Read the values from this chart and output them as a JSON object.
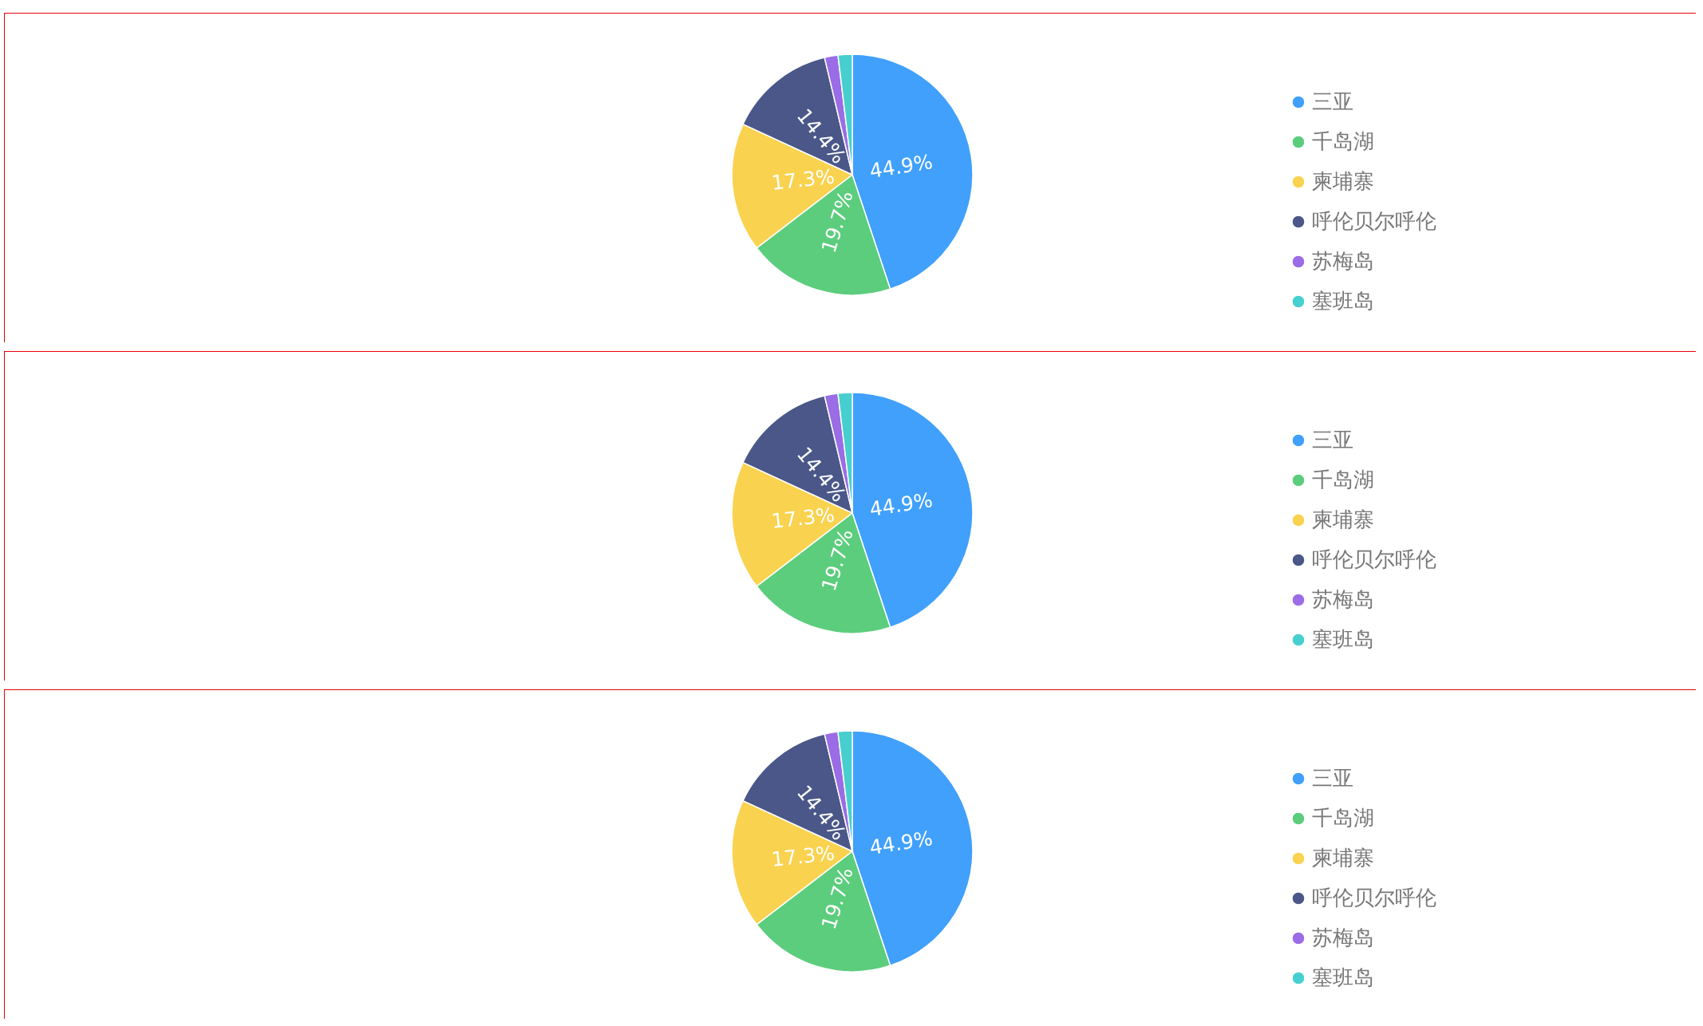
{
  "chart_data": [
    {
      "type": "pie",
      "categories": [
        "三亚",
        "千岛湖",
        "柬埔寨",
        "呼伦贝尔呼伦",
        "苏梅岛",
        "塞班岛"
      ],
      "values": [
        44.9,
        19.7,
        17.3,
        14.4,
        1.8,
        1.9
      ],
      "colors": [
        "#40a0fc",
        "#5ccd7d",
        "#f9d24f",
        "#4a5788",
        "#9a6ce6",
        "#47cfcf"
      ],
      "value_labels": [
        "44.9%",
        "19.7%",
        "17.3%",
        "14.4%",
        null,
        null
      ],
      "legend": "right"
    },
    {
      "type": "pie",
      "categories": [
        "三亚",
        "千岛湖",
        "柬埔寨",
        "呼伦贝尔呼伦",
        "苏梅岛",
        "塞班岛"
      ],
      "values": [
        44.9,
        19.7,
        17.3,
        14.4,
        1.8,
        1.9
      ],
      "colors": [
        "#40a0fc",
        "#5ccd7d",
        "#f9d24f",
        "#4a5788",
        "#9a6ce6",
        "#47cfcf"
      ],
      "value_labels": [
        "44.9%",
        "19.7%",
        "17.3%",
        "14.4%",
        null,
        null
      ],
      "legend": "right"
    },
    {
      "type": "pie",
      "categories": [
        "三亚",
        "千岛湖",
        "柬埔寨",
        "呼伦贝尔呼伦",
        "苏梅岛",
        "塞班岛"
      ],
      "values": [
        44.9,
        19.7,
        17.3,
        14.4,
        1.8,
        1.9
      ],
      "colors": [
        "#40a0fc",
        "#5ccd7d",
        "#f9d24f",
        "#4a5788",
        "#9a6ce6",
        "#47cfcf"
      ],
      "value_labels": [
        "44.9%",
        "19.7%",
        "17.3%",
        "14.4%",
        null,
        null
      ],
      "legend": "right"
    }
  ]
}
